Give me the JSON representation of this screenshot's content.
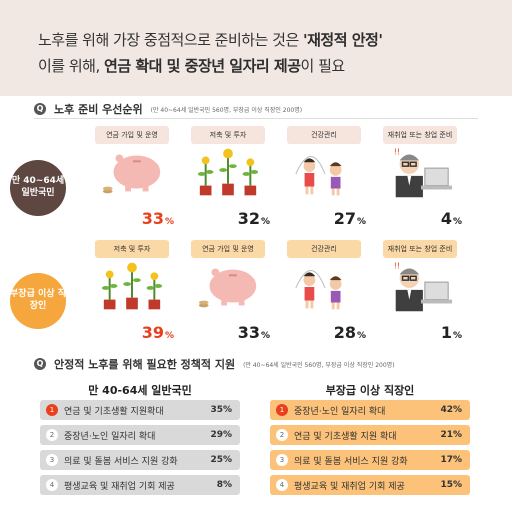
{
  "header": {
    "line1_prefix": "노후를 위해 가장 중점적으로 준비하는 것은 ",
    "line1_bold": "'재정적 안정'",
    "line2_prefix": "이를 위해, ",
    "line2_bold": "연금 확대 및 중장년 일자리 제공",
    "line2_suffix": "이 필요"
  },
  "section1": {
    "q": "Q",
    "title": "노후 준비 우선순위",
    "note": "(만 40~64세 일반국민 560명, 부장급 이상 직장인 200명)"
  },
  "section2": {
    "q": "Q",
    "title": "안정적 노후를 위해 필요한 정책적 지원",
    "note": "(만 40~64세 일반국민 560명, 부장급 이상 직장인 200명)"
  },
  "groups": [
    {
      "badge": "만 40~64세 일반국민",
      "color": "#5d4740",
      "cards": [
        {
          "label": "연금 가입 및 운영",
          "pct": "33",
          "unit": "%",
          "icon": "piggy-bank-icon"
        },
        {
          "label": "저축 및 투자",
          "pct": "32",
          "unit": "%",
          "icon": "money-plant-icon"
        },
        {
          "label": "건강관리",
          "pct": "27",
          "unit": "%",
          "icon": "jump-rope-icon"
        },
        {
          "label": "재취업 또는 창업 준비",
          "pct": "4",
          "unit": "%",
          "icon": "job-seeker-icon"
        }
      ]
    },
    {
      "badge": "부장급 이상 직장인",
      "color": "#f5a63c",
      "cards": [
        {
          "label": "저축 및 투자",
          "pct": "39",
          "unit": "%",
          "icon": "money-plant-icon"
        },
        {
          "label": "연금 가입 및 운영",
          "pct": "33",
          "unit": "%",
          "icon": "piggy-bank-icon"
        },
        {
          "label": "건강관리",
          "pct": "28",
          "unit": "%",
          "icon": "jump-rope-icon"
        },
        {
          "label": "재취업 또는 창업 준비",
          "pct": "1",
          "unit": "%",
          "icon": "job-seeker-icon"
        }
      ]
    }
  ],
  "policy": {
    "left": {
      "title": "만 40-64세 일반국민",
      "rows": [
        {
          "n": "1",
          "text": "연금 및 기초생활 지원확대",
          "val": "35%"
        },
        {
          "n": "2",
          "text": "중장년·노인 일자리 확대",
          "val": "29%"
        },
        {
          "n": "3",
          "text": "의료 및 돌봄 서비스 지원 강화",
          "val": "25%"
        },
        {
          "n": "4",
          "text": "평생교육 및 재취업 기회 제공",
          "val": "8%"
        }
      ]
    },
    "right": {
      "title": "부장급 이상 직장인",
      "rows": [
        {
          "n": "1",
          "text": "중장년·노인 일자리 확대",
          "val": "42%"
        },
        {
          "n": "2",
          "text": "연금 및 기초생활 지원 확대",
          "val": "21%"
        },
        {
          "n": "3",
          "text": "의료 및 돌봄 서비스 지원 강화",
          "val": "17%"
        },
        {
          "n": "4",
          "text": "평생교육 및 재취업 기회 제공",
          "val": "15%"
        }
      ]
    }
  },
  "colors": {
    "header_bg": "#f1e8e3",
    "brown": "#5d4740",
    "orange": "#f5a63c",
    "red": "#e8401c",
    "card_label_brown": "#f6e5dd",
    "card_label_orange": "#fbd9a6",
    "row_gray": "#d9d9d9",
    "row_orange": "#fcc27a"
  }
}
